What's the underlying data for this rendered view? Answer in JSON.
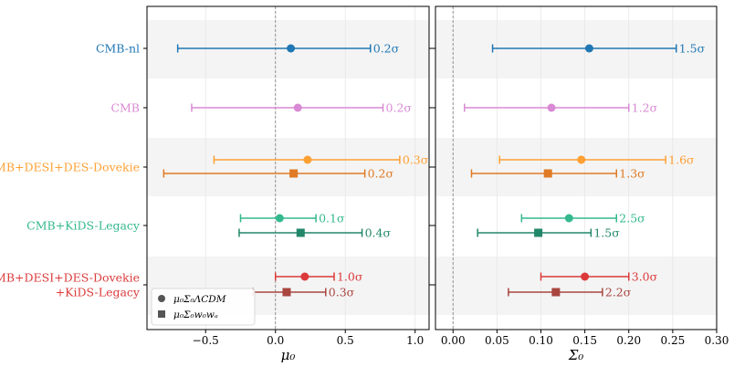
{
  "chart_data": [
    {
      "type": "forest",
      "panel": "left",
      "xlabel": "μ₀",
      "xlim": [
        -0.92,
        1.1
      ],
      "xticks": [
        -0.5,
        0.0,
        0.5,
        1.0
      ],
      "xtick_labels": [
        "−0.5",
        "0.0",
        "0.5",
        "1.0"
      ],
      "reference_line": 0.0,
      "grid": true,
      "rows": [
        {
          "label": "CMB-nl",
          "color": "#1f77b4",
          "entries": [
            {
              "model": "circle",
              "value": 0.11,
              "low": -0.7,
              "high": 0.68,
              "tension": "0.2σ"
            }
          ]
        },
        {
          "label": "CMB",
          "color": "#d98ad4",
          "entries": [
            {
              "model": "circle",
              "value": 0.16,
              "low": -0.6,
              "high": 0.77,
              "tension": "0.2σ"
            }
          ]
        },
        {
          "label": "CMB+DESI+DES-Dovekie",
          "color": "#ffa033",
          "color2": "#e07a24",
          "entries": [
            {
              "model": "circle",
              "value": 0.23,
              "low": -0.44,
              "high": 0.89,
              "tension": "0.3σ"
            },
            {
              "model": "square",
              "value": 0.13,
              "low": -0.8,
              "high": 0.64,
              "tension": "0.2σ"
            }
          ]
        },
        {
          "label": "CMB+KiDS-Legacy",
          "color": "#34b88e",
          "color2": "#21876a",
          "entries": [
            {
              "model": "circle",
              "value": 0.03,
              "low": -0.25,
              "high": 0.29,
              "tension": "0.1σ"
            },
            {
              "model": "square",
              "value": 0.18,
              "low": -0.26,
              "high": 0.62,
              "tension": "0.4σ"
            }
          ]
        },
        {
          "label": "CMB+DESI+DES-Dovekie\n+KiDS-Legacy",
          "color": "#dc3a3a",
          "color2": "#a8463f",
          "entries": [
            {
              "model": "circle",
              "value": 0.21,
              "low": 0.0,
              "high": 0.42,
              "tension": "1.0σ"
            },
            {
              "model": "square",
              "value": 0.08,
              "low": -0.16,
              "high": 0.36,
              "tension": "0.3σ"
            }
          ]
        }
      ],
      "legend": {
        "position": "lower-left",
        "entries": [
          {
            "marker": "circle",
            "label": "μ₀Σ₀ΛCDM"
          },
          {
            "marker": "square",
            "label": "μ₀Σ₀w₀wₐ"
          }
        ]
      }
    },
    {
      "type": "forest",
      "panel": "right",
      "xlabel": "Σ₀",
      "xlim": [
        -0.02,
        0.3
      ],
      "xticks": [
        0.0,
        0.05,
        0.1,
        0.15,
        0.2,
        0.25,
        0.3
      ],
      "xtick_labels": [
        "0.00",
        "0.05",
        "0.10",
        "0.15",
        "0.20",
        "0.25",
        "0.30"
      ],
      "reference_line": 0.0,
      "grid": true,
      "rows": [
        {
          "label": "CMB-nl",
          "color": "#1f77b4",
          "entries": [
            {
              "model": "circle",
              "value": 0.155,
              "low": 0.045,
              "high": 0.254,
              "tension": "1.5σ"
            }
          ]
        },
        {
          "label": "CMB",
          "color": "#d98ad4",
          "entries": [
            {
              "model": "circle",
              "value": 0.112,
              "low": 0.013,
              "high": 0.2,
              "tension": "1.2σ"
            }
          ]
        },
        {
          "label": "CMB+DESI+DES-Dovekie",
          "color": "#ffa033",
          "color2": "#e07a24",
          "entries": [
            {
              "model": "circle",
              "value": 0.146,
              "low": 0.053,
              "high": 0.242,
              "tension": "1.6σ"
            },
            {
              "model": "square",
              "value": 0.108,
              "low": 0.021,
              "high": 0.186,
              "tension": "1.3σ"
            }
          ]
        },
        {
          "label": "CMB+KiDS-Legacy",
          "color": "#34b88e",
          "color2": "#21876a",
          "entries": [
            {
              "model": "circle",
              "value": 0.132,
              "low": 0.078,
              "high": 0.186,
              "tension": "2.5σ"
            },
            {
              "model": "square",
              "value": 0.097,
              "low": 0.028,
              "high": 0.157,
              "tension": "1.5σ"
            }
          ]
        },
        {
          "label": "CMB+DESI+DES-Dovekie\n+KiDS-Legacy",
          "color": "#dc3a3a",
          "color2": "#a8463f",
          "entries": [
            {
              "model": "circle",
              "value": 0.15,
              "low": 0.1,
              "high": 0.2,
              "tension": "3.0σ"
            },
            {
              "model": "square",
              "value": 0.117,
              "low": 0.063,
              "high": 0.17,
              "tension": "2.2σ"
            }
          ]
        }
      ]
    }
  ]
}
